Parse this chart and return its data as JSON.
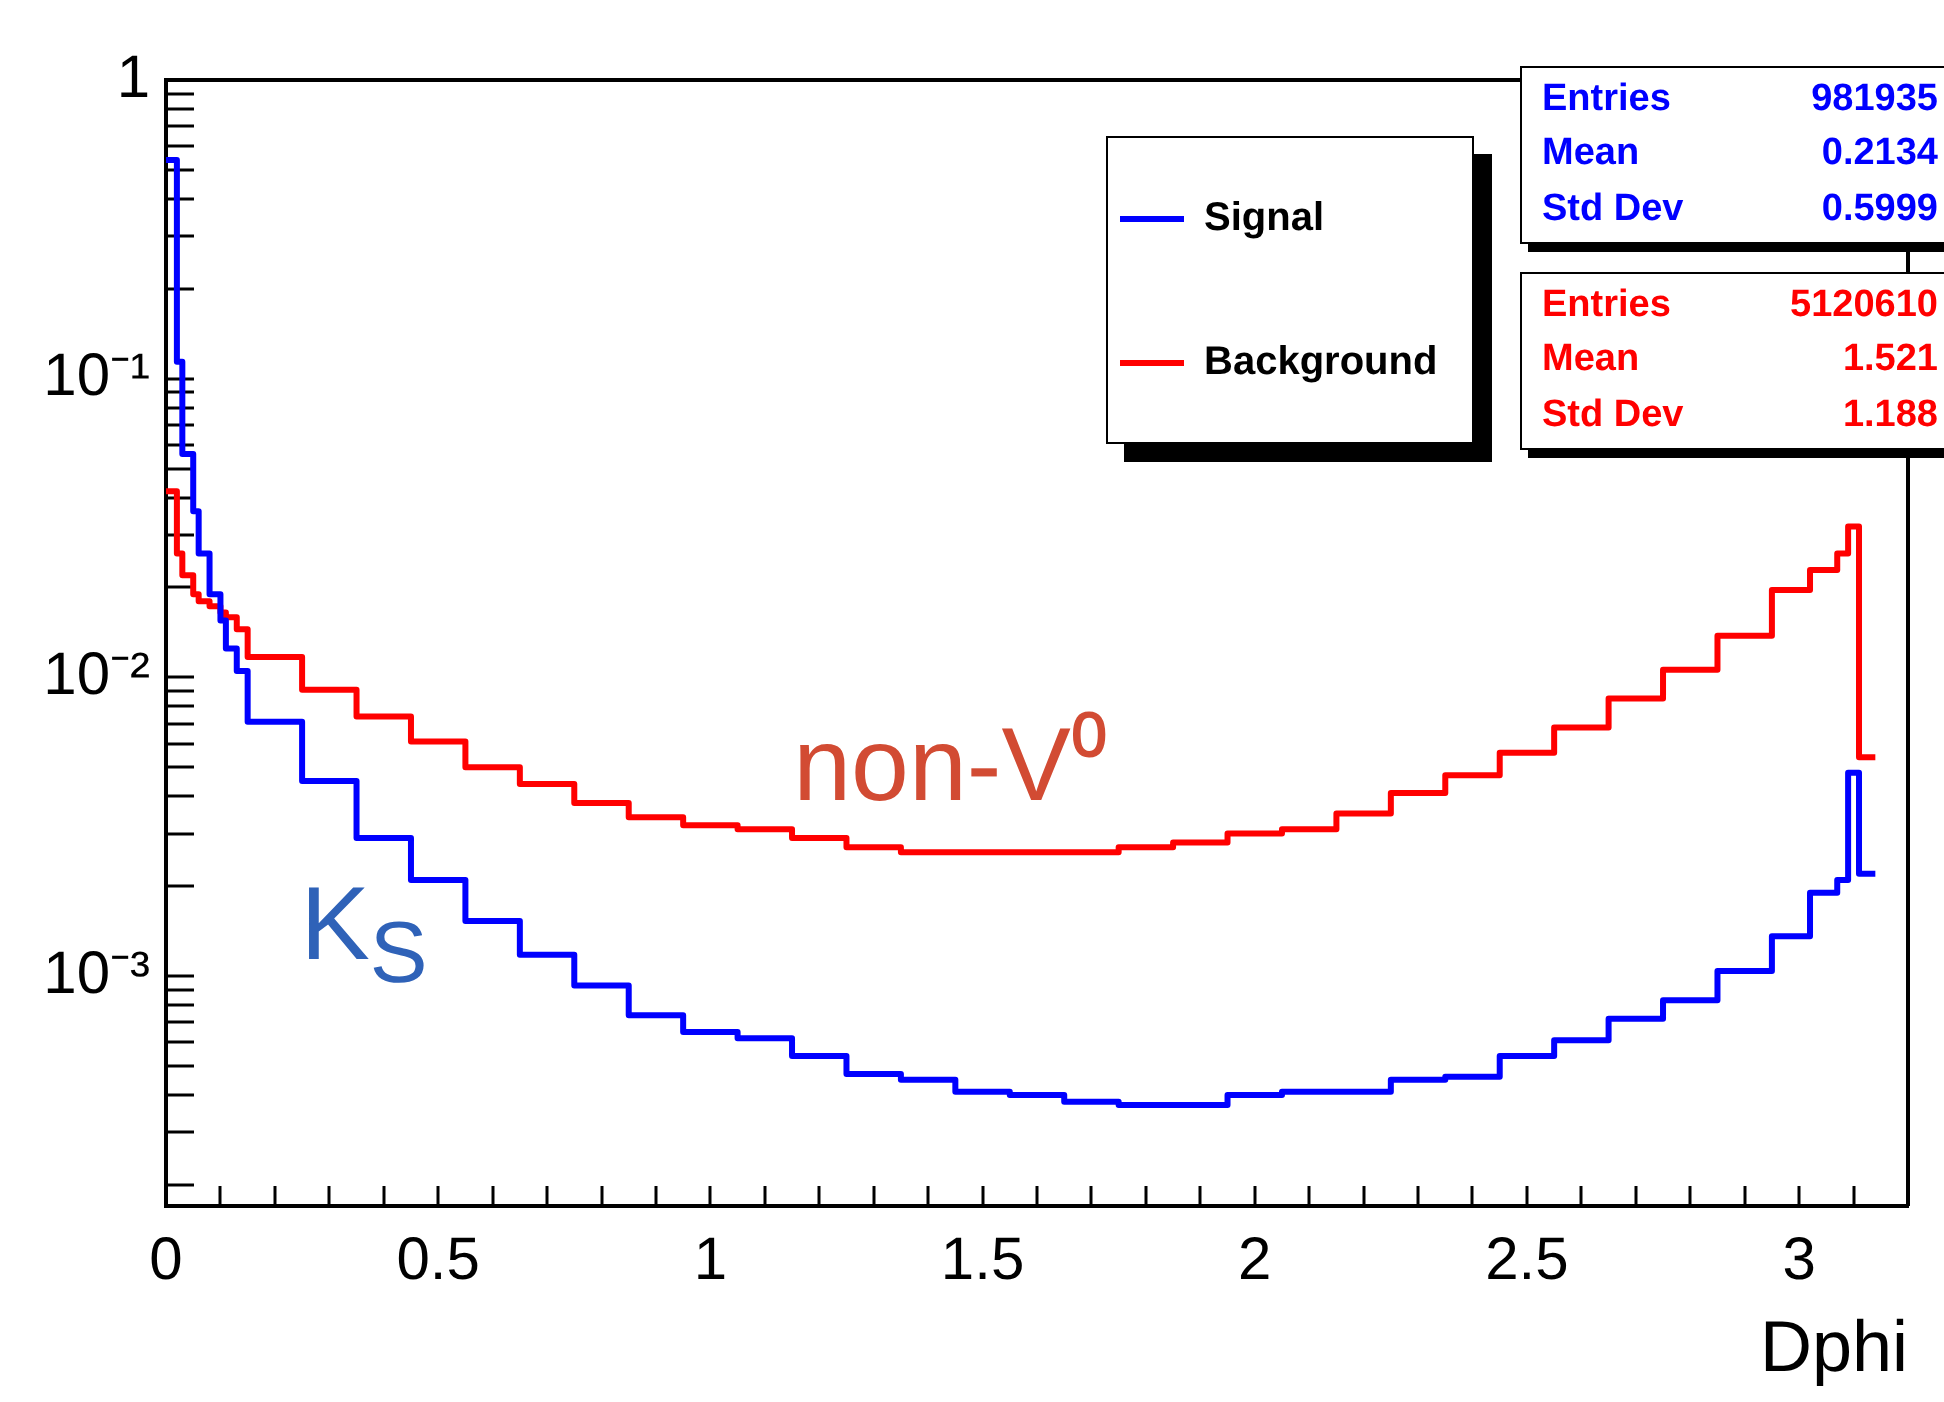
{
  "chart_data": {
    "type": "histogram",
    "xlabel": "Dphi",
    "log": true,
    "legend": "top right",
    "marker": "none",
    "bins": [
      0,
      0.02,
      0.03,
      0.05,
      0.06,
      0.08,
      0.1,
      0.11,
      0.13,
      0.15,
      0.25,
      0.35,
      0.45,
      0.55,
      0.65,
      0.75,
      0.85,
      0.95,
      1.05,
      1.15,
      1.25,
      1.35,
      1.45,
      1.55,
      1.65,
      1.75,
      1.85,
      1.95,
      2.05,
      2.15,
      2.25,
      2.35,
      2.45,
      2.55,
      2.65,
      2.75,
      2.85,
      2.95,
      3.02,
      3.07,
      3.09,
      3.11,
      3.14
    ],
    "series": [
      {
        "name": "Signal",
        "color": "#0000ff",
        "values": [
          0.54,
          0.114,
          0.056,
          0.036,
          0.026,
          0.019,
          0.0155,
          0.0125,
          0.0105,
          0.0071,
          0.0045,
          0.0029,
          0.0021,
          0.00153,
          0.00118,
          0.00093,
          0.00074,
          0.00065,
          0.00062,
          0.00054,
          0.00047,
          0.00045,
          0.00041,
          0.0004,
          0.00038,
          0.00037,
          0.00037,
          0.0004,
          0.00041,
          0.00041,
          0.00045,
          0.00046,
          0.00054,
          0.00061,
          0.00072,
          0.00083,
          0.00104,
          0.00136,
          0.0019,
          0.0021,
          0.0048,
          0.0022
        ]
      },
      {
        "name": "Background",
        "color": "#ff0000",
        "values": [
          0.042,
          0.026,
          0.022,
          0.019,
          0.018,
          0.0173,
          0.0165,
          0.0159,
          0.0145,
          0.0117,
          0.0091,
          0.0074,
          0.0061,
          0.005,
          0.0044,
          0.0038,
          0.0034,
          0.0032,
          0.0031,
          0.0029,
          0.0027,
          0.0026,
          0.0026,
          0.0026,
          0.0026,
          0.0027,
          0.0028,
          0.003,
          0.0031,
          0.0035,
          0.0041,
          0.0047,
          0.0056,
          0.0068,
          0.0085,
          0.0106,
          0.0138,
          0.0196,
          0.0229,
          0.026,
          0.032,
          0.0054
        ]
      }
    ],
    "xlim": [
      0,
      3.2
    ],
    "xticks": [
      0,
      {
        "value": 0.1,
        "label": null
      },
      {
        "value": 0.2,
        "label": null
      },
      {
        "value": 0.3,
        "label": null
      },
      {
        "value": 0.4,
        "label": null
      },
      0.5,
      {
        "value": 0.6,
        "label": null
      },
      {
        "value": 0.7,
        "label": null
      },
      {
        "value": 0.8,
        "label": null
      },
      {
        "value": 0.9,
        "label": null
      },
      1,
      {
        "value": 1.1,
        "label": null
      },
      {
        "value": 1.2,
        "label": null
      },
      {
        "value": 1.3,
        "label": null
      },
      {
        "value": 1.4,
        "label": null
      },
      1.5,
      {
        "value": 1.6,
        "label": null
      },
      {
        "value": 1.7,
        "label": null
      },
      {
        "value": 1.8,
        "label": null
      },
      {
        "value": 1.9,
        "label": null
      },
      2,
      {
        "value": 2.1,
        "label": null
      },
      {
        "value": 2.2,
        "label": null
      },
      {
        "value": 2.3,
        "label": null
      },
      {
        "value": 2.4,
        "label": null
      },
      2.5,
      {
        "value": 2.6,
        "label": null
      },
      {
        "value": 2.7,
        "label": null
      },
      {
        "value": 2.8,
        "label": null
      },
      {
        "value": 2.9,
        "label": null
      },
      3,
      {
        "value": 3.1,
        "label": null
      }
    ],
    "ylim": [
      0.00017,
      1
    ],
    "yticks": [
      {
        "value": 0.0002,
        "label": null
      },
      {
        "value": 0.0003,
        "label": null
      },
      {
        "value": 0.0004,
        "label": null
      },
      {
        "value": 0.0005,
        "label": null
      },
      {
        "value": 0.0006,
        "label": null
      },
      {
        "value": 0.0007,
        "label": null
      },
      {
        "value": 0.0008,
        "label": null
      },
      {
        "value": 0.0009,
        "label": null
      },
      {
        "value": 0.001,
        "label": "10⁻³"
      },
      {
        "value": 0.002,
        "label": null
      },
      {
        "value": 0.003,
        "label": null
      },
      {
        "value": 0.004,
        "label": null
      },
      {
        "value": 0.005,
        "label": null
      },
      {
        "value": 0.006,
        "label": null
      },
      {
        "value": 0.007,
        "label": null
      },
      {
        "value": 0.008,
        "label": null
      },
      {
        "value": 0.009,
        "label": null
      },
      {
        "value": 0.01,
        "label": "10⁻²"
      },
      {
        "value": 0.02,
        "label": null
      },
      {
        "value": 0.03,
        "label": null
      },
      {
        "value": 0.04,
        "label": null
      },
      {
        "value": 0.05,
        "label": null
      },
      {
        "value": 0.06,
        "label": null
      },
      {
        "value": 0.07,
        "label": null
      },
      {
        "value": 0.08,
        "label": null
      },
      {
        "value": 0.09,
        "label": null
      },
      {
        "value": 0.1,
        "label": "10⁻¹"
      },
      {
        "value": 0.2,
        "label": null
      },
      {
        "value": 0.3,
        "label": null
      },
      {
        "value": 0.4,
        "label": null
      },
      {
        "value": 0.5,
        "label": null
      },
      {
        "value": 0.6,
        "label": null
      },
      {
        "value": 0.7,
        "label": null
      },
      {
        "value": 0.8,
        "label": null
      },
      {
        "value": 0.9,
        "label": null
      },
      1
    ],
    "annotations": [
      "Entries 981935",
      "Mean 0.2134",
      "Std Dev 0.5999",
      "Entries 5120610",
      "Mean 1.521",
      "Std Dev 1.188",
      "non-V⁰",
      "K$_{S}$"
    ]
  }
}
